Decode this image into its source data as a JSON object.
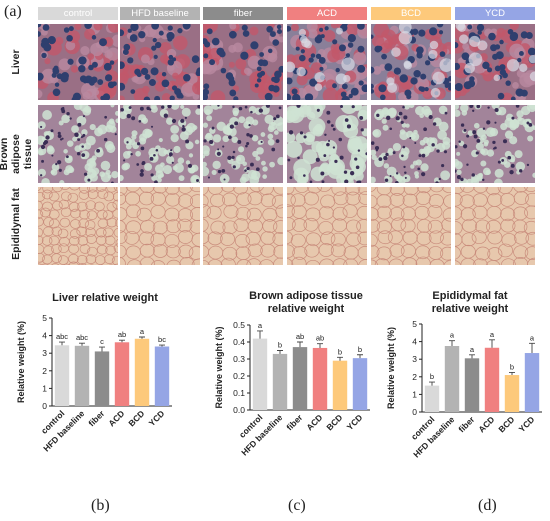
{
  "panel_labels": {
    "a": "(a)",
    "b": "(b)",
    "c": "(c)",
    "d": "(d)"
  },
  "groups": [
    {
      "label": "control",
      "color": "#d9d9d9"
    },
    {
      "label": "HFD baseline",
      "color": "#b3b3b3"
    },
    {
      "label": "fiber",
      "color": "#8c8c8c"
    },
    {
      "label": "ACD",
      "color": "#f08080"
    },
    {
      "label": "BCD",
      "color": "#fdc97b"
    },
    {
      "label": "YCD",
      "color": "#95a5e5"
    }
  ],
  "tissue_rows": [
    {
      "label": "Liver",
      "stain": "liver"
    },
    {
      "label": "Brown adipose tissue",
      "stain": "bat"
    },
    {
      "label": "Epididymal fat",
      "stain": "fat"
    }
  ],
  "chart_data": [
    {
      "type": "bar",
      "title": "Liver relative weight",
      "ylabel": "Relative weight (%)",
      "ylim": [
        0,
        5
      ],
      "yticks": [
        "0",
        "1",
        "2",
        "3",
        "4",
        "5"
      ],
      "categories": [
        "control",
        "HFD baseline",
        "fiber",
        "ACD",
        "BCD",
        "YCD"
      ],
      "values": [
        3.45,
        3.42,
        3.1,
        3.62,
        3.82,
        3.38
      ],
      "errors": [
        0.18,
        0.15,
        0.25,
        0.12,
        0.1,
        0.08
      ],
      "letters": [
        "abc",
        "abc",
        "c",
        "ab",
        "a",
        "bc"
      ]
    },
    {
      "type": "bar",
      "title": "Brown adipose tissue relative weight",
      "ylabel": "Relative weight (%)",
      "ylim": [
        0,
        0.5
      ],
      "yticks": [
        "0.0",
        "0.1",
        "0.2",
        "0.3",
        "0.4",
        "0.5"
      ],
      "categories": [
        "control",
        "HFD baseline",
        "fiber",
        "ACD",
        "BCD",
        "YCD"
      ],
      "values": [
        0.42,
        0.33,
        0.37,
        0.365,
        0.29,
        0.305
      ],
      "errors": [
        0.045,
        0.02,
        0.03,
        0.025,
        0.02,
        0.02
      ],
      "letters": [
        "a",
        "b",
        "ab",
        "ab",
        "b",
        "b"
      ]
    },
    {
      "type": "bar",
      "title": "Epididymal fat relative weight",
      "ylabel": "Relative weight (%)",
      "ylim": [
        0,
        5
      ],
      "yticks": [
        "0",
        "1",
        "2",
        "3",
        "4",
        "5"
      ],
      "categories": [
        "control",
        "HFD baseline",
        "fiber",
        "ACD",
        "BCD",
        "YCD"
      ],
      "values": [
        1.5,
        3.75,
        3.05,
        3.65,
        2.1,
        3.35
      ],
      "errors": [
        0.2,
        0.3,
        0.2,
        0.45,
        0.15,
        0.55
      ],
      "letters": [
        "b",
        "a",
        "a",
        "a",
        "b",
        "a"
      ]
    }
  ]
}
